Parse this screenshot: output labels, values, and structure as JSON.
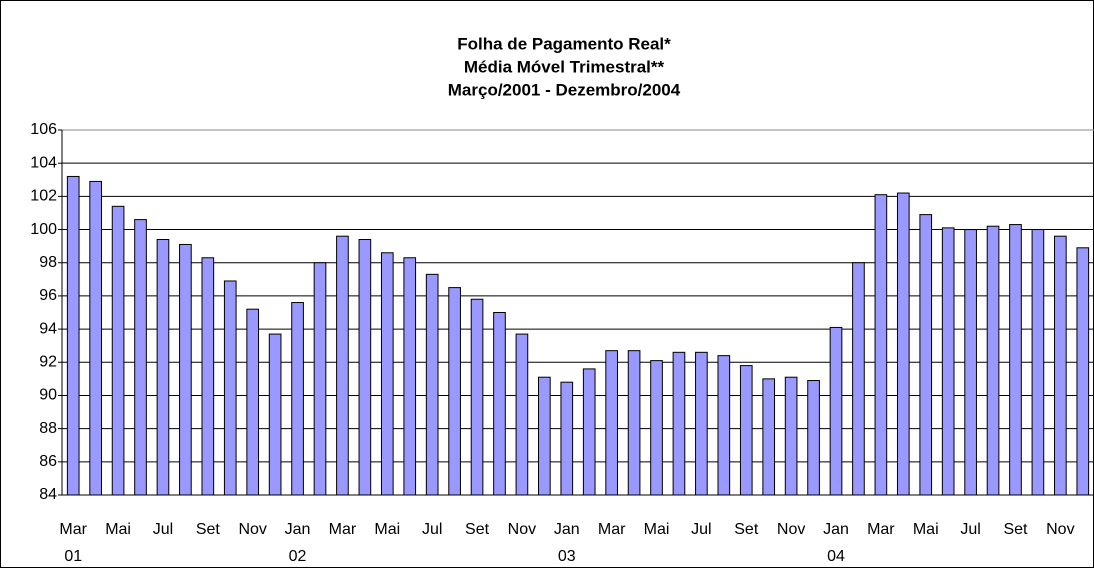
{
  "chart_data": {
    "type": "bar",
    "title": [
      "Folha de Pagamento Real*",
      "Média Móvel Trimestral**",
      "Março/2001 - Dezembro/2004"
    ],
    "categories": [
      "Mar",
      null,
      "Mai",
      null,
      "Jul",
      null,
      "Set",
      null,
      "Nov",
      null,
      "Jan",
      null,
      "Mar",
      null,
      "Mai",
      null,
      "Jul",
      null,
      "Set",
      null,
      "Nov",
      null,
      "Jan",
      null,
      "Mar",
      null,
      "Mai",
      null,
      "Jul",
      null,
      "Set",
      null,
      "Nov",
      null,
      "Jan",
      null,
      "Mar",
      null,
      "Mai",
      null,
      "Jul",
      null,
      "Set",
      null,
      "Nov",
      null
    ],
    "year_labels": [
      "01",
      null,
      null,
      null,
      null,
      null,
      null,
      null,
      null,
      null,
      "02",
      null,
      null,
      null,
      null,
      null,
      null,
      null,
      null,
      null,
      null,
      null,
      "03",
      null,
      null,
      null,
      null,
      null,
      null,
      null,
      null,
      null,
      null,
      null,
      "04",
      null,
      null,
      null,
      null,
      null,
      null,
      null,
      null,
      null,
      null,
      null
    ],
    "values": [
      103.2,
      102.9,
      101.4,
      100.6,
      99.4,
      99.1,
      98.3,
      96.9,
      95.2,
      93.7,
      95.6,
      98.0,
      99.6,
      99.4,
      98.6,
      98.3,
      97.3,
      96.5,
      95.8,
      95.0,
      93.7,
      91.1,
      90.8,
      91.6,
      92.7,
      92.7,
      92.1,
      92.6,
      92.6,
      92.4,
      91.8,
      91.0,
      91.1,
      90.9,
      94.1,
      98.0,
      102.1,
      102.2,
      100.9,
      100.1,
      100.0,
      100.2,
      100.3,
      100.0,
      99.6,
      98.9
    ],
    "color": "#9999ff",
    "ylim": [
      84,
      106
    ],
    "yticks": [
      84,
      86,
      88,
      90,
      92,
      94,
      96,
      98,
      100,
      102,
      104,
      106
    ],
    "grid": true
  }
}
